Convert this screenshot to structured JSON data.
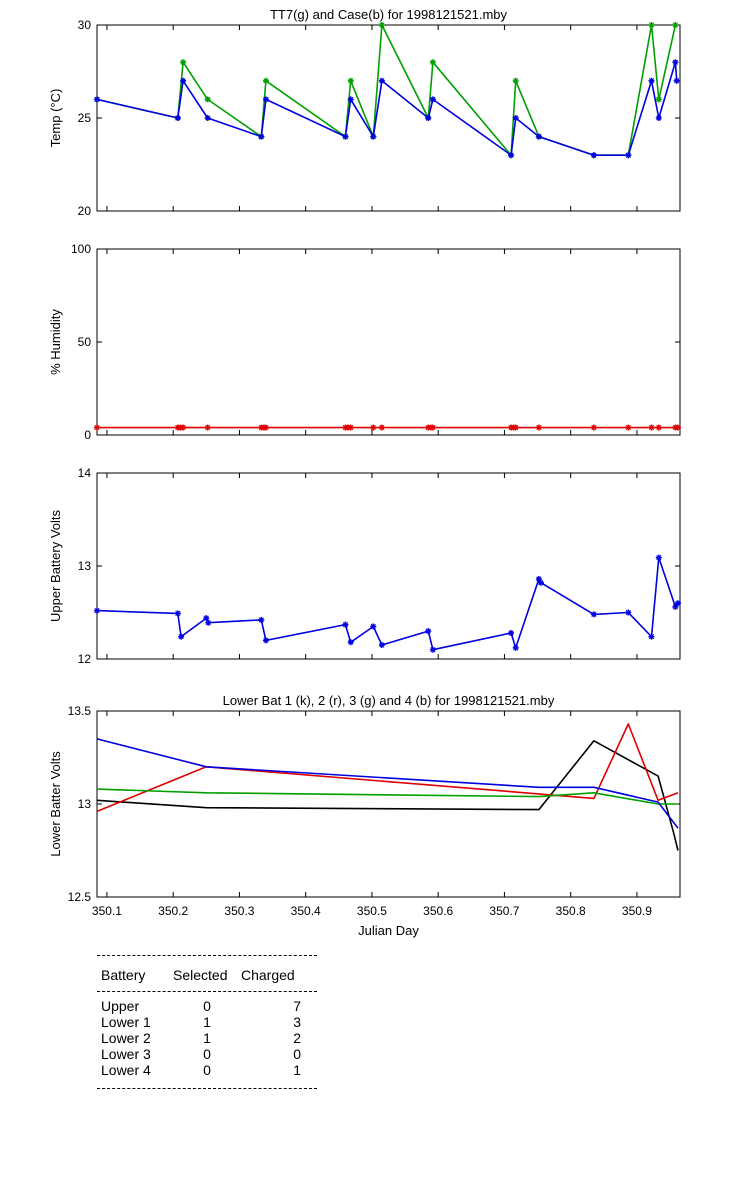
{
  "chart_data": [
    {
      "type": "line",
      "title": "TT7(g) and Case(b) for 1998121521.mby",
      "xlabel": "",
      "ylabel": "Temp  (°C)",
      "xlim": [
        350.085,
        350.965
      ],
      "ylim": [
        20,
        30
      ],
      "yticks": [
        "20",
        "25",
        "30"
      ],
      "series": [
        {
          "name": "TT7",
          "color": "#00a000",
          "markers": true,
          "x": [
            350.085,
            350.207,
            350.215,
            350.252,
            350.333,
            350.34,
            350.46,
            350.468,
            350.502,
            350.515,
            350.585,
            350.592,
            350.71,
            350.717,
            350.752,
            350.835,
            350.887,
            350.922,
            350.933,
            350.958
          ],
          "y": [
            26,
            25,
            28,
            26,
            24,
            27,
            24,
            27,
            24,
            30,
            25,
            28,
            23,
            27,
            24,
            23,
            23,
            30,
            26,
            30
          ]
        },
        {
          "name": "Case",
          "color": "#0000e0",
          "markers": true,
          "x": [
            350.085,
            350.207,
            350.215,
            350.252,
            350.333,
            350.34,
            350.46,
            350.468,
            350.502,
            350.515,
            350.585,
            350.592,
            350.71,
            350.717,
            350.752,
            350.835,
            350.887,
            350.922,
            350.933,
            350.958,
            350.96
          ],
          "y": [
            26,
            25,
            27,
            25,
            24,
            26,
            24,
            26,
            24,
            27,
            25,
            26,
            23,
            25,
            24,
            23,
            23,
            27,
            25,
            28,
            27
          ]
        }
      ]
    },
    {
      "type": "line",
      "title": "",
      "xlabel": "",
      "ylabel": "% Humidity",
      "xlim": [
        350.085,
        350.965
      ],
      "ylim": [
        0,
        100
      ],
      "yticks": [
        "0",
        "50",
        "100"
      ],
      "series": [
        {
          "name": "",
          "color": "#e00000",
          "markers": true,
          "x": [
            350.085,
            350.207,
            350.211,
            350.215,
            350.252,
            350.333,
            350.337,
            350.34,
            350.46,
            350.464,
            350.468,
            350.502,
            350.515,
            350.585,
            350.589,
            350.592,
            350.71,
            350.714,
            350.717,
            350.752,
            350.835,
            350.887,
            350.922,
            350.933,
            350.958,
            350.962
          ],
          "y": [
            4,
            4,
            4,
            4,
            4,
            4,
            4,
            4,
            4,
            4,
            4,
            4,
            4,
            4,
            4,
            4,
            4,
            4,
            4,
            4,
            4,
            4,
            4,
            4,
            4,
            4
          ]
        }
      ]
    },
    {
      "type": "line",
      "title": "",
      "xlabel": "",
      "ylabel": "Upper Battery Volts",
      "xlim": [
        350.085,
        350.965
      ],
      "ylim": [
        12,
        14
      ],
      "yticks": [
        "12",
        "13",
        "14"
      ],
      "series": [
        {
          "name": "",
          "color": "#0000e0",
          "markers": true,
          "x": [
            350.085,
            350.207,
            350.212,
            350.25,
            350.253,
            350.333,
            350.34,
            350.46,
            350.468,
            350.502,
            350.515,
            350.585,
            350.592,
            350.71,
            350.717,
            350.752,
            350.755,
            350.835,
            350.887,
            350.922,
            350.933,
            350.958,
            350.962
          ],
          "y": [
            12.52,
            12.49,
            12.24,
            12.44,
            12.39,
            12.42,
            12.2,
            12.37,
            12.18,
            12.35,
            12.15,
            12.3,
            12.1,
            12.28,
            12.12,
            12.86,
            12.82,
            12.48,
            12.5,
            12.24,
            13.09,
            12.56,
            12.6
          ]
        }
      ]
    },
    {
      "type": "line",
      "title": "Lower Bat 1 (k), 2 (r), 3 (g) and 4 (b) for 1998121521.mby",
      "xlabel": "Julian Day",
      "ylabel": "Lower Batter Volts",
      "xlim": [
        350.085,
        350.965
      ],
      "ylim": [
        12.5,
        13.5
      ],
      "yticks": [
        "12.5",
        "13",
        "13.5"
      ],
      "xticks": [
        "350.1",
        "350.2",
        "350.3",
        "350.4",
        "350.5",
        "350.6",
        "350.7",
        "350.8",
        "350.9"
      ],
      "xtick_values": [
        350.1,
        350.2,
        350.3,
        350.4,
        350.5,
        350.6,
        350.7,
        350.8,
        350.9
      ],
      "series": [
        {
          "name": "Lower Bat 1",
          "color": "#000000",
          "markers": false,
          "x": [
            350.085,
            350.25,
            350.752,
            350.835,
            350.932,
            350.955,
            350.962
          ],
          "y": [
            13.02,
            12.98,
            12.97,
            13.34,
            13.15,
            12.85,
            12.75
          ]
        },
        {
          "name": "Lower Bat 2",
          "color": "#e00000",
          "markers": false,
          "x": [
            350.085,
            350.25,
            350.835,
            350.887,
            350.932,
            350.962
          ],
          "y": [
            12.96,
            13.2,
            13.03,
            13.43,
            13.02,
            13.06
          ]
        },
        {
          "name": "Lower Bat 3",
          "color": "#00a000",
          "markers": false,
          "x": [
            350.085,
            350.25,
            350.752,
            350.835,
            350.932,
            350.962
          ],
          "y": [
            13.08,
            13.06,
            13.04,
            13.06,
            13.0,
            13.0
          ]
        },
        {
          "name": "Lower Bat 4",
          "color": "#0000e0",
          "markers": false,
          "x": [
            350.085,
            350.25,
            350.752,
            350.835,
            350.932,
            350.962
          ],
          "y": [
            13.35,
            13.2,
            13.09,
            13.09,
            13.01,
            12.87
          ]
        }
      ]
    }
  ],
  "battery_table": {
    "headers": [
      "Battery",
      "Selected",
      "Charged"
    ],
    "rows": [
      {
        "battery": "Upper",
        "selected": "0",
        "charged": "7"
      },
      {
        "battery": "Lower 1",
        "selected": "1",
        "charged": "3"
      },
      {
        "battery": "Lower 2",
        "selected": "1",
        "charged": "2"
      },
      {
        "battery": "Lower 3",
        "selected": "0",
        "charged": "0"
      },
      {
        "battery": "Lower 4",
        "selected": "0",
        "charged": "1"
      }
    ]
  }
}
